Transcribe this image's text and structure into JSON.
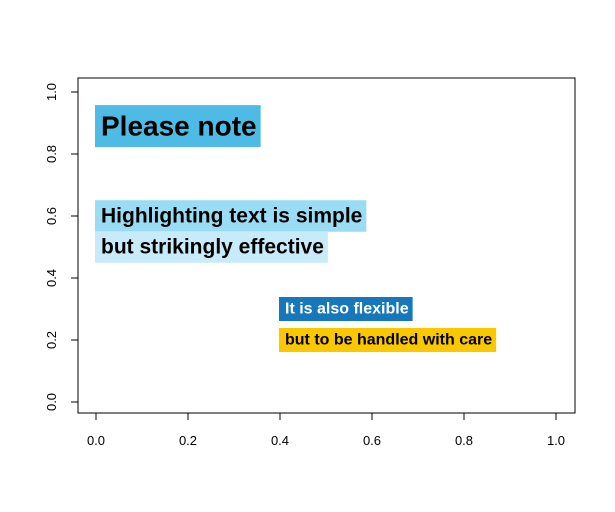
{
  "chart_data": {
    "type": "scatter",
    "title": "",
    "xlabel": "",
    "ylabel": "",
    "xlim": [
      0,
      1
    ],
    "ylim": [
      0,
      1
    ],
    "grid": false,
    "xticks": [
      0.0,
      0.2,
      0.4,
      0.6,
      0.8,
      1.0
    ],
    "yticks": [
      0.0,
      0.2,
      0.4,
      0.6,
      0.8,
      1.0
    ],
    "xtick_labels": [
      "0.0",
      "0.2",
      "0.4",
      "0.6",
      "0.8",
      "1.0"
    ],
    "ytick_labels": [
      "0.0",
      "0.2",
      "0.4",
      "0.6",
      "0.8",
      "1.0"
    ],
    "annotations": [
      {
        "text": "Please note",
        "x": 0.0,
        "y": 0.89,
        "size": "large",
        "bg": "#4dbbe3",
        "color": "#000000"
      },
      {
        "text": "Highlighting text is simple",
        "x": 0.0,
        "y": 0.6,
        "size": "medium",
        "bg": "#9adcf3",
        "color": "#000000"
      },
      {
        "text": "but strikingly effective",
        "x": 0.0,
        "y": 0.5,
        "size": "medium",
        "bg": "#c7ebf8",
        "color": "#000000"
      },
      {
        "text": "It is also flexible",
        "x": 0.4,
        "y": 0.3,
        "size": "small",
        "bg": "#1777bb",
        "color": "#ffffff"
      },
      {
        "text": "but to be handled with care",
        "x": 0.4,
        "y": 0.2,
        "size": "small",
        "bg": "#fbc800",
        "color": "#000000"
      }
    ]
  }
}
